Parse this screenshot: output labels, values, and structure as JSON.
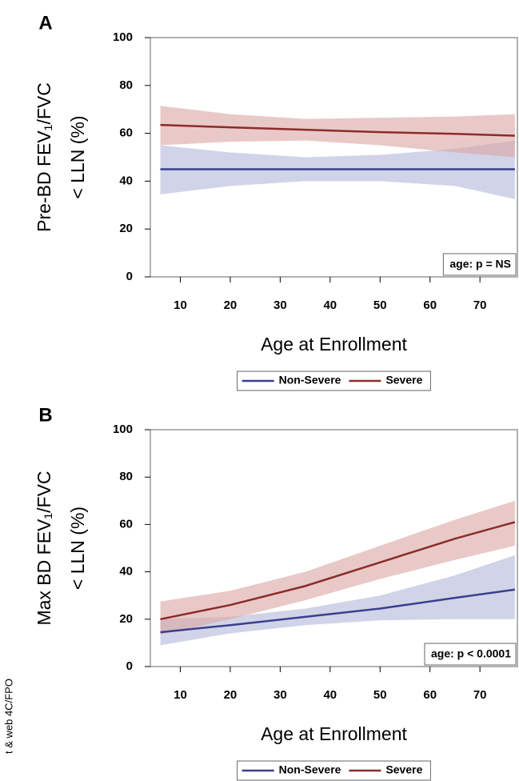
{
  "side_text": "t & web 4C/FPO",
  "chart_data": [
    {
      "type": "line",
      "panel_label": "A",
      "ylabel": [
        "Pre-BD FEV₁/FVC",
        "< LLN (%)"
      ],
      "xlabel": "Age at Enrollment",
      "annotation": "age: p = NS",
      "x": [
        6,
        20,
        35,
        50,
        65,
        77
      ],
      "series": [
        {
          "name": "Non-Severe",
          "color": "#3b3f8c",
          "band_color": "#b3b7d9",
          "values": [
            45,
            45,
            45,
            45,
            45,
            45
          ],
          "lower": [
            34.5,
            38,
            40,
            40,
            38,
            32.5
          ],
          "upper": [
            55,
            52,
            50,
            51,
            53.5,
            57
          ]
        },
        {
          "name": "Severe",
          "color": "#8c2b2b",
          "band_color": "#dba5a1",
          "values": [
            63.5,
            62.5,
            61.5,
            60.5,
            59.8,
            59
          ],
          "lower": [
            55,
            56.5,
            57,
            55,
            52,
            50
          ],
          "upper": [
            71.5,
            68,
            66,
            66.5,
            67,
            68
          ]
        }
      ],
      "xlim": [
        4,
        77.5
      ],
      "ylim": [
        0,
        100
      ],
      "xticks": [
        10,
        20,
        30,
        40,
        50,
        60,
        70
      ],
      "yticks": [
        0,
        20,
        40,
        60,
        80,
        100
      ]
    },
    {
      "type": "line",
      "panel_label": "B",
      "ylabel": [
        "Max BD FEV₁/FVC",
        "< LLN (%)"
      ],
      "xlabel": "Age at Enrollment",
      "annotation": "age: p < 0.0001",
      "x": [
        6,
        20,
        35,
        50,
        65,
        77
      ],
      "series": [
        {
          "name": "Non-Severe",
          "color": "#3b3f8c",
          "band_color": "#b3b7d9",
          "values": [
            14.5,
            17.5,
            21,
            24.5,
            29,
            32.5
          ],
          "lower": [
            9,
            14,
            17.5,
            19.5,
            20,
            20
          ],
          "upper": [
            20,
            21,
            24.5,
            30,
            38.5,
            47
          ]
        },
        {
          "name": "Severe",
          "color": "#8c2b2b",
          "band_color": "#dba5a1",
          "values": [
            20,
            26,
            34,
            44,
            54,
            61
          ],
          "lower": [
            13.5,
            20,
            28,
            37,
            45,
            51
          ],
          "upper": [
            27.5,
            32,
            40,
            51,
            62,
            70
          ]
        }
      ],
      "xlim": [
        4,
        77.5
      ],
      "ylim": [
        0,
        100
      ],
      "xticks": [
        10,
        20,
        30,
        40,
        50,
        60,
        70
      ],
      "yticks": [
        0,
        20,
        40,
        60,
        80,
        100
      ]
    }
  ]
}
